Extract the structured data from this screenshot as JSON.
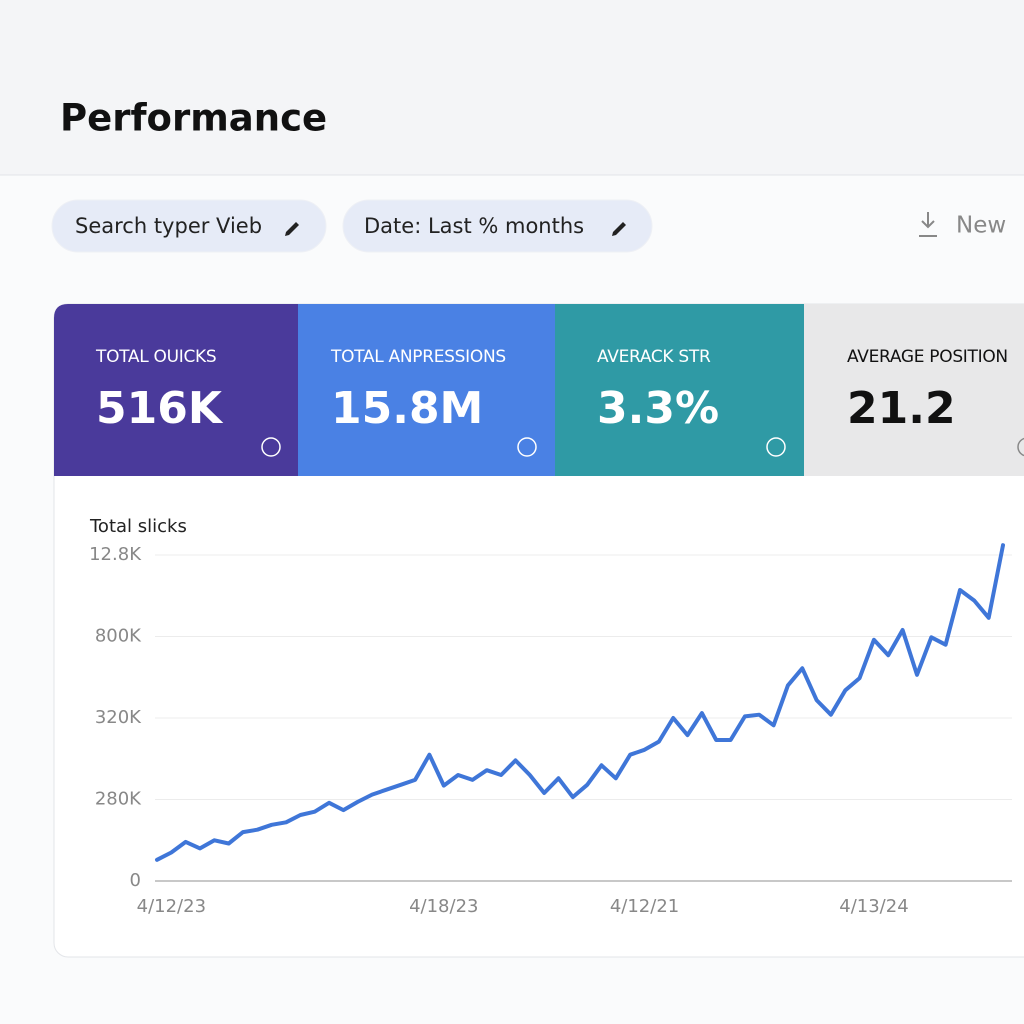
{
  "header": {
    "title": "Performance"
  },
  "filters": [
    {
      "label": "Search typer Vieb"
    },
    {
      "label": "Date: Last % months"
    }
  ],
  "actions": {
    "export": "New"
  },
  "cards": [
    {
      "label": "TOTAL OUICKS",
      "value": "516K"
    },
    {
      "label": "TOTAL ANPRESSIONS",
      "value": "15.8M"
    },
    {
      "label": "AVERACK STR",
      "value": "3.3%"
    },
    {
      "label": "AVERAGE POSITION",
      "value": "21.2"
    }
  ],
  "chart_data": {
    "type": "line",
    "y_label": "Total slicks",
    "color": "#3f76d8",
    "categories": [
      null,
      "4/12/23",
      null,
      null,
      null,
      null,
      null,
      null,
      null,
      null,
      null,
      null,
      null,
      null,
      null,
      null,
      null,
      null,
      null,
      null,
      "4/18/23",
      null,
      null,
      null,
      null,
      null,
      null,
      null,
      null,
      null,
      null,
      null,
      null,
      null,
      "4/12/21",
      null,
      null,
      null,
      null,
      null,
      null,
      null,
      null,
      null,
      null,
      null,
      null,
      null,
      null,
      null,
      "4/13/24",
      null,
      null,
      null,
      null,
      null,
      null,
      null,
      null,
      null
    ],
    "values": [
      0.26,
      0.35,
      0.48,
      0.4,
      0.5,
      0.46,
      0.6,
      0.63,
      0.69,
      0.72,
      0.81,
      0.85,
      0.96,
      0.87,
      0.97,
      1.06,
      1.12,
      1.18,
      1.24,
      1.55,
      1.17,
      1.3,
      1.24,
      1.36,
      1.3,
      1.48,
      1.3,
      1.08,
      1.26,
      1.03,
      1.18,
      1.42,
      1.26,
      1.55,
      1.61,
      1.71,
      2.0,
      1.79,
      2.06,
      1.73,
      1.73,
      2.02,
      2.04,
      1.91,
      2.4,
      2.61,
      2.22,
      2.04,
      2.34,
      2.49,
      2.96,
      2.77,
      3.08,
      2.53,
      2.99,
      2.9,
      3.57,
      3.44,
      3.23,
      4.12
    ],
    "ylim": [
      0,
      4.2
    ],
    "yticks": [
      {
        "value": 0,
        "label": "0"
      },
      {
        "value": 1,
        "label": "280K"
      },
      {
        "value": 2,
        "label": "320K"
      },
      {
        "value": 3,
        "label": "800K"
      },
      {
        "value": 4,
        "label": "12.8K"
      }
    ],
    "grid": true
  }
}
